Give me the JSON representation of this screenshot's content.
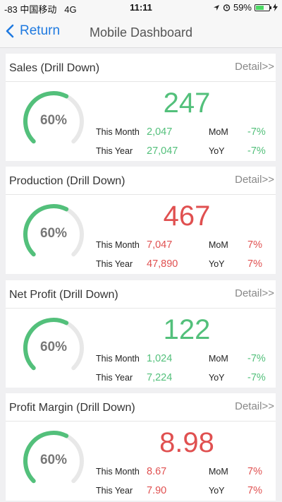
{
  "status_bar": {
    "carrier": "-83 中国移动",
    "network": "4G",
    "time": "11:11",
    "battery": "59%",
    "battery_level": 0.59
  },
  "nav": {
    "back_label": "Return",
    "title": "Mobile Dashboard"
  },
  "cards": [
    {
      "title": "Sales (Drill Down)",
      "detail": "Detail>>",
      "gauge_label": "60%",
      "gauge_value": 0.6,
      "value": "247",
      "this_month_label": "This Month",
      "this_month": "2,047",
      "mom_label": "MoM",
      "mom": "-7%",
      "this_year_label": "This Year",
      "this_year": "27,047",
      "yoy_label": "YoY",
      "yoy": "-7%"
    },
    {
      "title": "Production (Drill Down)",
      "detail": "Detail>>",
      "gauge_label": "60%",
      "gauge_value": 0.6,
      "value": "467",
      "this_month_label": "This Month",
      "this_month": "7,047",
      "mom_label": "MoM",
      "mom": "7%",
      "this_year_label": "This Year",
      "this_year": "47,890",
      "yoy_label": "YoY",
      "yoy": "7%"
    },
    {
      "title": "Net Profit (Drill Down)",
      "detail": "Detail>>",
      "gauge_label": "60%",
      "gauge_value": 0.6,
      "value": "122",
      "this_month_label": "This Month",
      "this_month": "1,024",
      "mom_label": "MoM",
      "mom": "-7%",
      "this_year_label": "This Year",
      "this_year": "7,224",
      "yoy_label": "YoY",
      "yoy": "-7%"
    },
    {
      "title": "Profit Margin (Drill Down)",
      "detail": "Detail>>",
      "gauge_label": "60%",
      "gauge_value": 0.6,
      "value": "8.98",
      "this_month_label": "This Month",
      "this_month": "8.67",
      "mom_label": "MoM",
      "mom": "7%",
      "this_year_label": "This Year",
      "this_year": "7.90",
      "yoy_label": "YoY",
      "yoy": "7%"
    }
  ],
  "colors": {
    "positive": "#53c07b",
    "negative": "#e05050",
    "gauge_track": "#e8e8e8",
    "link": "#1f7ae0"
  }
}
